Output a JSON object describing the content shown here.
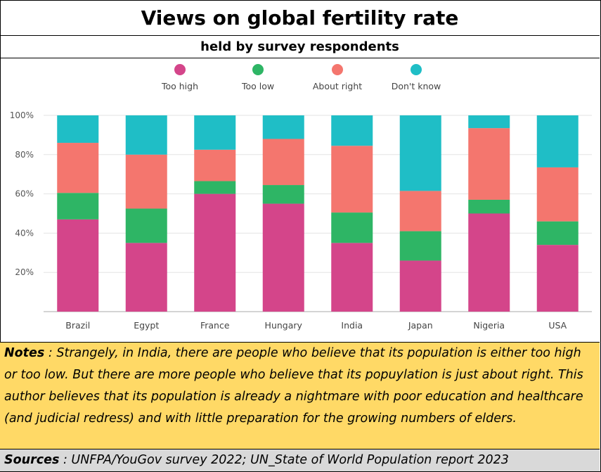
{
  "header": {
    "title": "Views on global fertility rate",
    "subtitle": "held by survey respondents"
  },
  "notes": {
    "label": "Notes",
    "text": " : Strangely, in India, there are people who believe that its population is  either too high or too low. But there are more people who believe that its popuylation is just about right. This author believes that its population is already a nightmare with poor education and healthcare (and judicial redress) and with little preparation for the growing numbers of elders."
  },
  "sources": {
    "label": "Sources",
    "text": " : UNFPA/YouGov survey 2022; UN_State of World Population report 2023"
  },
  "chart_data": {
    "type": "bar",
    "stacked": true,
    "categories": [
      "Brazil",
      "Egypt",
      "France",
      "Hungary",
      "India",
      "Japan",
      "Nigeria",
      "USA"
    ],
    "series": [
      {
        "name": "Too high",
        "color": "#d4458a",
        "values": [
          47,
          35,
          60,
          55,
          35,
          26,
          50,
          34
        ]
      },
      {
        "name": "Too low",
        "color": "#2eb565",
        "values": [
          13.5,
          17.5,
          6.5,
          9.5,
          15.5,
          15,
          7,
          12
        ]
      },
      {
        "name": "About right",
        "color": "#f4766e",
        "values": [
          25.5,
          27.5,
          16,
          23.5,
          34,
          20.5,
          36.5,
          27.5
        ]
      },
      {
        "name": "Don't know",
        "color": "#1fbec6",
        "values": [
          14,
          20,
          17.5,
          12,
          15.5,
          38.5,
          6.5,
          26.5
        ]
      }
    ],
    "yticks": [
      "20%",
      "40%",
      "60%",
      "80%",
      "100%"
    ],
    "ytick_values": [
      20,
      40,
      60,
      80,
      100
    ],
    "ylim": [
      0,
      100
    ],
    "legend_position": "top",
    "grid": true
  }
}
